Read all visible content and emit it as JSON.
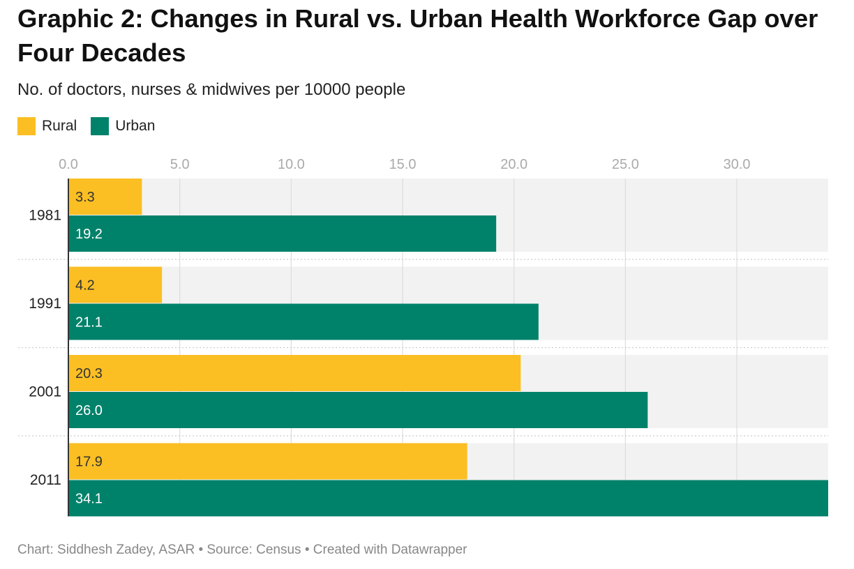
{
  "title": "Graphic 2: Changes in Rural vs. Urban Health Workforce Gap over Four Decades",
  "subtitle": "No. of doctors, nurses & midwives per 10000 people",
  "footer": "Chart: Siddhesh Zadey, ASAR • Source: Census • Created with Datawrapper",
  "colors": {
    "rural": "#fbbf24",
    "urban": "#00826a",
    "row_bg": "#f2f2f2",
    "grid": "#dddddd",
    "axis": "#333333"
  },
  "legend": [
    {
      "label": "Rural",
      "color": "#fbbf24"
    },
    {
      "label": "Urban",
      "color": "#00826a"
    }
  ],
  "chart_data": {
    "type": "bar",
    "orientation": "horizontal",
    "categories": [
      "1981",
      "1991",
      "2001",
      "2011"
    ],
    "series": [
      {
        "name": "Rural",
        "values": [
          3.3,
          4.2,
          20.3,
          17.9
        ],
        "labels": [
          "3.3",
          "4.2",
          "20.3",
          "17.9"
        ]
      },
      {
        "name": "Urban",
        "values": [
          19.2,
          21.1,
          26.0,
          34.1
        ],
        "labels": [
          "19.2",
          "21.1",
          "26.0",
          "34.1"
        ]
      }
    ],
    "xticks": [
      0,
      5,
      10,
      15,
      20,
      25,
      30
    ],
    "xtick_labels": [
      "0.0",
      "5.0",
      "10.0",
      "15.0",
      "20.0",
      "25.0",
      "30.0"
    ],
    "xlim": [
      0,
      34.1
    ],
    "grid": true,
    "legend_position": "top-left"
  }
}
